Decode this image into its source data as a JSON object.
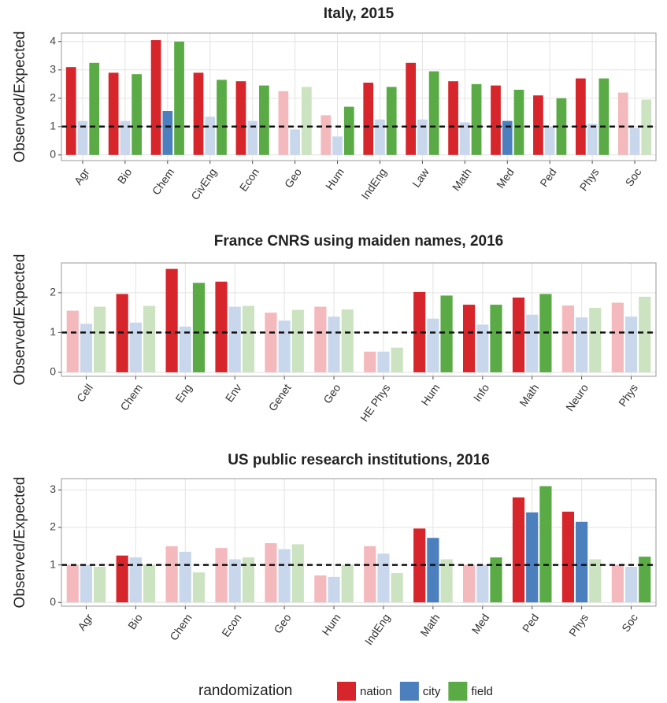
{
  "chart_data": [
    {
      "type": "bar",
      "title": "Italy, 2015",
      "ylabel": "Observed/Expected",
      "categories": [
        "Agr",
        "Bio",
        "Chem",
        "CivEng",
        "Econ",
        "Geo",
        "Hum",
        "IndEng",
        "Law",
        "Math",
        "Med",
        "Ped",
        "Phys",
        "Soc"
      ],
      "ylim": [
        -0.2,
        4.3
      ],
      "yticks": [
        0,
        1,
        2,
        3,
        4
      ],
      "hline": 1,
      "grid": true,
      "series": [
        {
          "name": "nation",
          "color": "#d7262b",
          "values": [
            3.1,
            2.9,
            4.05,
            2.9,
            2.6,
            2.25,
            1.4,
            2.55,
            3.25,
            2.6,
            2.45,
            2.1,
            2.7,
            2.2
          ],
          "colors": [
            "#d7262b",
            "#d7262b",
            "#d7262b",
            "#d7262b",
            "#d7262b",
            "#f4b9bd",
            "#f4b9bd",
            "#d7262b",
            "#d7262b",
            "#d7262b",
            "#d7262b",
            "#d7262b",
            "#d7262b",
            "#f4b9bd"
          ]
        },
        {
          "name": "city",
          "color": "#4b7fbd",
          "values": [
            1.2,
            1.2,
            1.55,
            1.35,
            1.2,
            0.9,
            0.65,
            1.25,
            1.25,
            1.15,
            1.2,
            1.0,
            1.1,
            0.95
          ],
          "colors": [
            "#c9d7ec",
            "#c9d7ec",
            "#4b7fbd",
            "#c9d7ec",
            "#c9d7ec",
            "#c9d7ec",
            "#c9d7ec",
            "#c9d7ec",
            "#c9d7ec",
            "#c9d7ec",
            "#4b7fbd",
            "#c9d7ec",
            "#c9d7ec",
            "#c9d7ec"
          ]
        },
        {
          "name": "field",
          "color": "#5aab46",
          "values": [
            3.25,
            2.85,
            4.0,
            2.65,
            2.45,
            2.4,
            1.7,
            2.4,
            2.95,
            2.5,
            2.3,
            2.0,
            2.7,
            1.95
          ],
          "colors": [
            "#5aab46",
            "#5aab46",
            "#5aab46",
            "#5aab46",
            "#5aab46",
            "#cbe3c0",
            "#5aab46",
            "#5aab46",
            "#5aab46",
            "#5aab46",
            "#5aab46",
            "#5aab46",
            "#5aab46",
            "#cbe3c0"
          ]
        }
      ]
    },
    {
      "type": "bar",
      "title": "France CNRS using maiden names, 2016",
      "ylabel": "Observed/Expected",
      "categories": [
        "Cell",
        "Chem",
        "Eng",
        "Env",
        "Genet",
        "Geo",
        "HE Phys",
        "Hum",
        "Info",
        "Math",
        "Neuro",
        "Phys"
      ],
      "ylim": [
        -0.1,
        2.75
      ],
      "yticks": [
        0,
        1,
        2
      ],
      "hline": 1,
      "grid": true,
      "series": [
        {
          "name": "nation",
          "color": "#d7262b",
          "values": [
            1.55,
            1.97,
            2.6,
            2.28,
            1.5,
            1.65,
            0.52,
            2.02,
            1.7,
            1.88,
            1.68,
            1.75
          ],
          "colors": [
            "#f4b9bd",
            "#d7262b",
            "#d7262b",
            "#d7262b",
            "#f4b9bd",
            "#f4b9bd",
            "#f4b9bd",
            "#d7262b",
            "#d7262b",
            "#d7262b",
            "#f4b9bd",
            "#f4b9bd"
          ]
        },
        {
          "name": "city",
          "color": "#4b7fbd",
          "values": [
            1.22,
            1.25,
            1.15,
            1.65,
            1.3,
            1.4,
            0.52,
            1.35,
            1.2,
            1.45,
            1.38,
            1.4
          ],
          "colors": [
            "#c9d7ec",
            "#c9d7ec",
            "#c9d7ec",
            "#c9d7ec",
            "#c9d7ec",
            "#c9d7ec",
            "#c9d7ec",
            "#c9d7ec",
            "#c9d7ec",
            "#c9d7ec",
            "#c9d7ec",
            "#c9d7ec"
          ]
        },
        {
          "name": "field",
          "color": "#5aab46",
          "values": [
            1.65,
            1.67,
            2.25,
            1.67,
            1.57,
            1.58,
            0.62,
            1.93,
            1.7,
            1.97,
            1.62,
            1.9
          ],
          "colors": [
            "#cbe3c0",
            "#cbe3c0",
            "#5aab46",
            "#cbe3c0",
            "#cbe3c0",
            "#cbe3c0",
            "#cbe3c0",
            "#5aab46",
            "#5aab46",
            "#5aab46",
            "#cbe3c0",
            "#cbe3c0"
          ]
        }
      ]
    },
    {
      "type": "bar",
      "title": "US public research institutions, 2016",
      "ylabel": "Observed/Expected",
      "categories": [
        "Agr",
        "Bio",
        "Chem",
        "Econ",
        "Geo",
        "Hum",
        "IndEng",
        "Math",
        "Med",
        "Ped",
        "Phys",
        "Soc"
      ],
      "ylim": [
        -0.1,
        3.3
      ],
      "yticks": [
        0,
        1,
        2,
        3
      ],
      "hline": 1,
      "grid": true,
      "series": [
        {
          "name": "nation",
          "color": "#d7262b",
          "values": [
            1.0,
            1.25,
            1.5,
            1.45,
            1.58,
            0.72,
            1.5,
            1.97,
            1.0,
            2.8,
            2.42,
            1.0
          ],
          "colors": [
            "#f4b9bd",
            "#d7262b",
            "#f4b9bd",
            "#f4b9bd",
            "#f4b9bd",
            "#f4b9bd",
            "#f4b9bd",
            "#d7262b",
            "#f4b9bd",
            "#d7262b",
            "#d7262b",
            "#f4b9bd"
          ]
        },
        {
          "name": "city",
          "color": "#4b7fbd",
          "values": [
            1.0,
            1.2,
            1.35,
            1.15,
            1.42,
            0.68,
            1.3,
            1.72,
            1.0,
            2.4,
            2.15,
            0.95
          ],
          "colors": [
            "#c9d7ec",
            "#c9d7ec",
            "#c9d7ec",
            "#c9d7ec",
            "#c9d7ec",
            "#c9d7ec",
            "#c9d7ec",
            "#4b7fbd",
            "#c9d7ec",
            "#4b7fbd",
            "#4b7fbd",
            "#c9d7ec"
          ]
        },
        {
          "name": "field",
          "color": "#5aab46",
          "values": [
            0.95,
            1.0,
            0.8,
            1.2,
            1.55,
            1.0,
            0.78,
            1.15,
            1.2,
            3.1,
            1.15,
            1.22
          ],
          "colors": [
            "#cbe3c0",
            "#cbe3c0",
            "#cbe3c0",
            "#cbe3c0",
            "#cbe3c0",
            "#cbe3c0",
            "#cbe3c0",
            "#cbe3c0",
            "#5aab46",
            "#5aab46",
            "#cbe3c0",
            "#5aab46"
          ]
        }
      ]
    }
  ],
  "legend": {
    "title": "randomization"
  }
}
